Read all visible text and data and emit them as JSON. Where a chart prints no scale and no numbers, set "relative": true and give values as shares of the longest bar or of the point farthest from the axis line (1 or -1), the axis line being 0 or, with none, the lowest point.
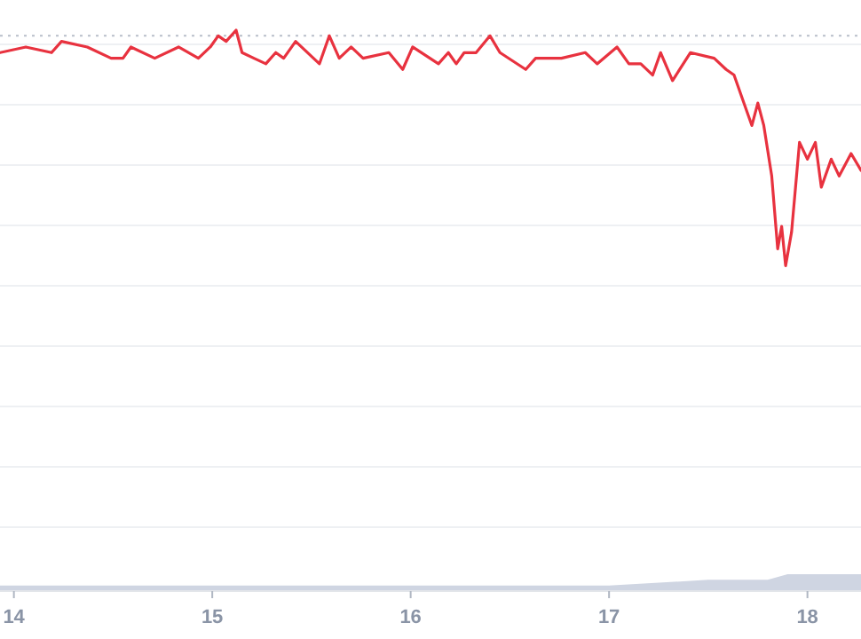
{
  "chart_data": {
    "type": "line",
    "relative": true,
    "x": [
      13.93,
      14.06,
      14.19,
      14.24,
      14.37,
      14.49,
      14.55,
      14.59,
      14.71,
      14.83,
      14.93,
      14.99,
      15.03,
      15.07,
      15.12,
      15.15,
      15.21,
      15.27,
      15.32,
      15.36,
      15.42,
      15.54,
      15.59,
      15.64,
      15.7,
      15.76,
      15.89,
      15.96,
      16.01,
      16.14,
      16.19,
      16.23,
      16.27,
      16.33,
      16.4,
      16.45,
      16.58,
      16.63,
      16.76,
      16.88,
      16.94,
      17.04,
      17.1,
      17.16,
      17.22,
      17.26,
      17.32,
      17.41,
      17.53,
      17.59,
      17.63,
      17.68,
      17.72,
      17.75,
      17.78,
      17.82,
      17.85,
      17.87,
      17.89,
      17.92,
      17.96,
      18.0,
      18.04,
      18.07,
      18.12,
      18.16,
      18.22,
      18.27
    ],
    "series": [
      {
        "color": "#e8323f",
        "values": [
          0.96,
          0.97,
          0.96,
          0.98,
          0.97,
          0.95,
          0.95,
          0.97,
          0.95,
          0.97,
          0.95,
          0.97,
          0.99,
          0.98,
          1.0,
          0.96,
          0.95,
          0.94,
          0.96,
          0.95,
          0.98,
          0.94,
          0.99,
          0.95,
          0.97,
          0.95,
          0.96,
          0.93,
          0.97,
          0.94,
          0.96,
          0.94,
          0.96,
          0.96,
          0.99,
          0.96,
          0.93,
          0.95,
          0.95,
          0.96,
          0.94,
          0.97,
          0.94,
          0.94,
          0.92,
          0.96,
          0.91,
          0.96,
          0.95,
          0.93,
          0.92,
          0.87,
          0.83,
          0.87,
          0.83,
          0.74,
          0.61,
          0.65,
          0.58,
          0.64,
          0.8,
          0.77,
          0.8,
          0.72,
          0.77,
          0.74,
          0.78,
          0.75
        ]
      },
      {
        "type": "area",
        "color": "#cfd5e2",
        "x": [
          13.93,
          14.4,
          15.2,
          16.0,
          16.5,
          17.0,
          17.5,
          17.8,
          17.9,
          18.27
        ],
        "values": [
          0.01,
          0.01,
          0.01,
          0.01,
          0.01,
          0.01,
          0.02,
          0.02,
          0.03,
          0.03
        ]
      }
    ],
    "xlim": [
      13.93,
      18.27
    ],
    "xticks": [
      14,
      15,
      16,
      17,
      18
    ],
    "grid": "y",
    "line_style": "solid",
    "marker": "none",
    "ref_lines": [
      {
        "axis": "y",
        "value": 0.99,
        "color": "#b8bec9",
        "line_style": "dotted"
      }
    ]
  }
}
